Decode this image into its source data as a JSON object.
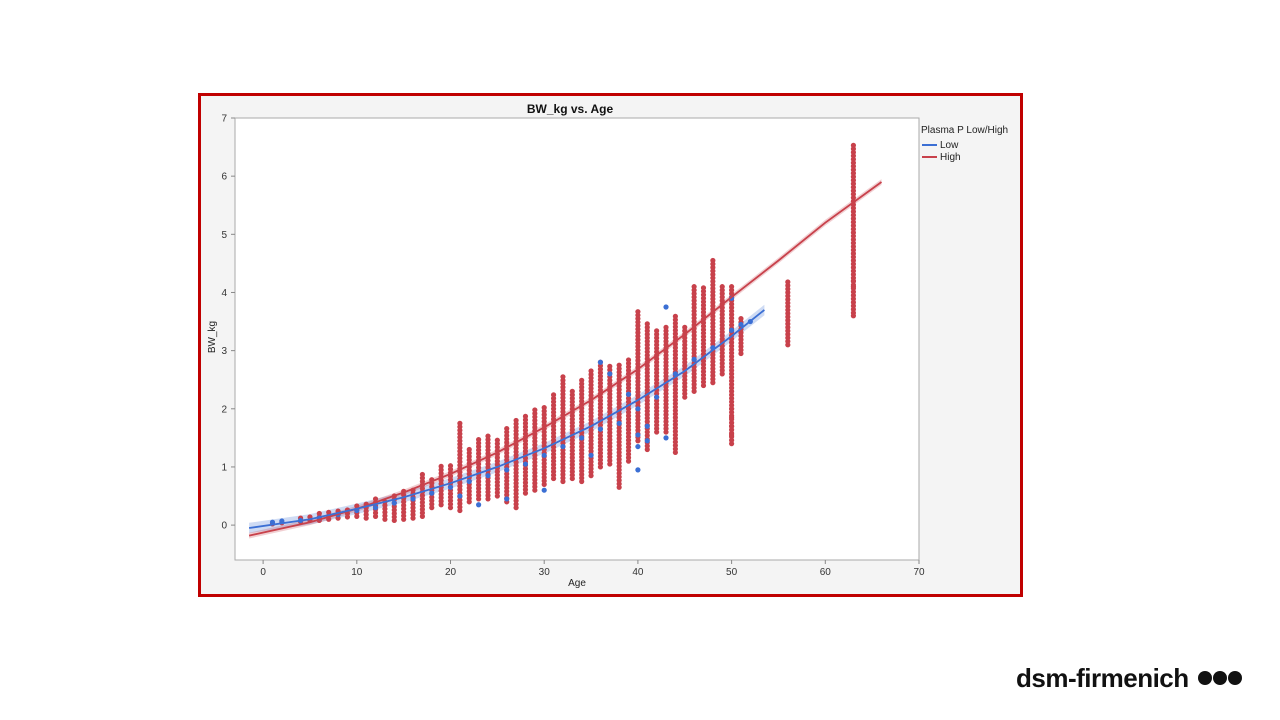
{
  "chart_data": {
    "type": "scatter",
    "title": "BW_kg vs. Age",
    "xlabel": "Age",
    "ylabel": "BW_kg",
    "xlim": [
      -3,
      70
    ],
    "ylim": [
      -0.6,
      7
    ],
    "xticks": [
      0,
      10,
      20,
      30,
      40,
      50,
      60,
      70
    ],
    "yticks": [
      0,
      1,
      2,
      3,
      4,
      5,
      6,
      7
    ],
    "grid": false,
    "legend": {
      "title": "Plasma P Low/High",
      "placement": "right"
    },
    "series": [
      {
        "name": "Low",
        "color": "#3b6fd4",
        "points": [
          [
            1,
            0.05
          ],
          [
            2,
            0.07
          ],
          [
            4,
            0.08
          ],
          [
            6,
            0.12
          ],
          [
            8,
            0.18
          ],
          [
            10,
            0.25
          ],
          [
            12,
            0.3
          ],
          [
            14,
            0.38
          ],
          [
            16,
            0.45
          ],
          [
            18,
            0.55
          ],
          [
            20,
            0.65
          ],
          [
            21,
            0.5
          ],
          [
            22,
            0.75
          ],
          [
            23,
            0.35
          ],
          [
            24,
            0.85
          ],
          [
            26,
            0.45
          ],
          [
            26,
            0.95
          ],
          [
            28,
            1.05
          ],
          [
            30,
            0.6
          ],
          [
            30,
            1.2
          ],
          [
            32,
            1.35
          ],
          [
            34,
            1.5
          ],
          [
            35,
            1.2
          ],
          [
            36,
            1.65
          ],
          [
            36,
            2.8
          ],
          [
            37,
            2.6
          ],
          [
            38,
            1.75
          ],
          [
            39,
            2.25
          ],
          [
            40,
            0.95
          ],
          [
            40,
            1.35
          ],
          [
            40,
            1.55
          ],
          [
            40,
            2.0
          ],
          [
            41,
            1.7
          ],
          [
            41,
            1.45
          ],
          [
            42,
            2.2
          ],
          [
            43,
            1.5
          ],
          [
            43,
            3.75
          ],
          [
            44,
            2.6
          ],
          [
            46,
            2.85
          ],
          [
            48,
            3.05
          ],
          [
            50,
            3.35
          ],
          [
            50,
            3.9
          ],
          [
            51,
            3.45
          ],
          [
            52,
            3.5
          ]
        ],
        "fit": [
          [
            -1.5,
            -0.05
          ],
          [
            5,
            0.1
          ],
          [
            10,
            0.28
          ],
          [
            15,
            0.48
          ],
          [
            20,
            0.72
          ],
          [
            25,
            1.0
          ],
          [
            30,
            1.32
          ],
          [
            35,
            1.7
          ],
          [
            40,
            2.15
          ],
          [
            45,
            2.65
          ],
          [
            50,
            3.25
          ],
          [
            53.5,
            3.7
          ]
        ]
      },
      {
        "name": "High",
        "color": "#c8414b",
        "columns": [
          [
            1,
            0.02,
            0.07
          ],
          [
            2,
            0.04,
            0.09
          ],
          [
            4,
            0.06,
            0.13
          ],
          [
            5,
            0.08,
            0.15
          ],
          [
            6,
            0.08,
            0.2
          ],
          [
            7,
            0.1,
            0.24
          ],
          [
            8,
            0.12,
            0.26
          ],
          [
            9,
            0.14,
            0.28
          ],
          [
            10,
            0.15,
            0.35
          ],
          [
            11,
            0.12,
            0.38
          ],
          [
            12,
            0.15,
            0.48
          ],
          [
            13,
            0.1,
            0.45
          ],
          [
            14,
            0.08,
            0.55
          ],
          [
            15,
            0.1,
            0.6
          ],
          [
            16,
            0.12,
            0.65
          ],
          [
            17,
            0.15,
            0.9
          ],
          [
            18,
            0.3,
            0.8
          ],
          [
            19,
            0.35,
            1.05
          ],
          [
            20,
            0.3,
            1.05
          ],
          [
            21,
            0.25,
            1.75
          ],
          [
            22,
            0.4,
            1.35
          ],
          [
            23,
            0.45,
            1.5
          ],
          [
            24,
            0.45,
            1.55
          ],
          [
            25,
            0.5,
            1.5
          ],
          [
            26,
            0.4,
            1.7
          ],
          [
            27,
            0.3,
            1.85
          ],
          [
            28,
            0.55,
            1.9
          ],
          [
            29,
            0.6,
            2.0
          ],
          [
            30,
            0.7,
            2.05
          ],
          [
            31,
            0.8,
            2.25
          ],
          [
            32,
            0.75,
            2.55
          ],
          [
            33,
            0.8,
            2.3
          ],
          [
            34,
            0.75,
            2.5
          ],
          [
            35,
            0.85,
            2.65
          ],
          [
            36,
            1.0,
            2.8
          ],
          [
            37,
            1.05,
            2.75
          ],
          [
            38,
            0.65,
            2.75
          ],
          [
            39,
            1.1,
            2.85
          ],
          [
            40,
            1.45,
            3.7
          ],
          [
            41,
            1.3,
            3.5
          ],
          [
            42,
            1.6,
            3.35
          ],
          [
            43,
            1.6,
            3.45
          ],
          [
            44,
            1.25,
            3.6
          ],
          [
            45,
            2.2,
            3.4
          ],
          [
            46,
            2.3,
            4.1
          ],
          [
            47,
            2.4,
            4.1
          ],
          [
            48,
            2.45,
            4.55
          ],
          [
            49,
            2.6,
            4.1
          ],
          [
            50,
            1.4,
            4.15
          ],
          [
            51,
            2.95,
            3.55
          ],
          [
            56,
            3.1,
            4.2
          ],
          [
            63,
            3.65,
            6.55
          ]
        ],
        "outliers": [
          [
            50,
            1.55
          ],
          [
            50,
            1.7
          ],
          [
            50,
            1.85
          ],
          [
            50,
            2.0
          ],
          [
            63,
            3.6
          ],
          [
            63,
            4.1
          ],
          [
            63,
            4.2
          ]
        ],
        "fit": [
          [
            -1.5,
            -0.18
          ],
          [
            5,
            0.05
          ],
          [
            10,
            0.28
          ],
          [
            15,
            0.56
          ],
          [
            20,
            0.88
          ],
          [
            25,
            1.25
          ],
          [
            30,
            1.68
          ],
          [
            35,
            2.15
          ],
          [
            40,
            2.68
          ],
          [
            45,
            3.28
          ],
          [
            50,
            3.92
          ],
          [
            55,
            4.55
          ],
          [
            60,
            5.2
          ],
          [
            66,
            5.9
          ]
        ]
      }
    ]
  },
  "brand": {
    "name": "dsm-firmenich"
  }
}
